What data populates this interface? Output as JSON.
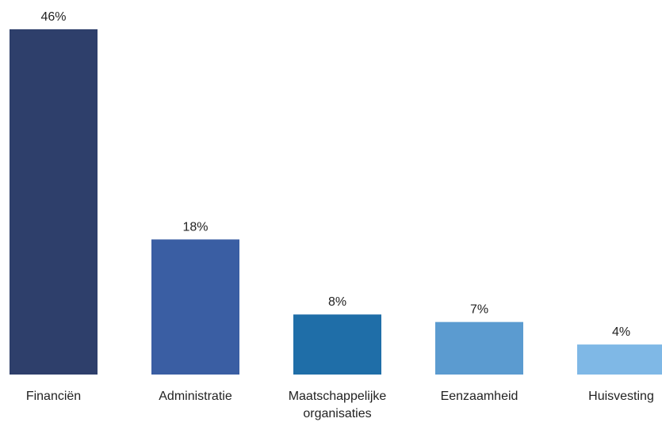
{
  "chart_data": {
    "type": "bar",
    "categories": [
      [
        "Financiën"
      ],
      [
        "Administratie"
      ],
      [
        "Maatschappelijke",
        "organisaties"
      ],
      [
        "Eenzaamheid"
      ],
      [
        "Huisvesting"
      ]
    ],
    "values": [
      46,
      18,
      8,
      7,
      4
    ],
    "value_labels": [
      "46%",
      "18%",
      "8%",
      "7%",
      "4%"
    ],
    "unit": "%",
    "title": "",
    "xlabel": "",
    "ylabel": "",
    "ylim": [
      0,
      46
    ],
    "grid": false,
    "legend": "none",
    "colors": [
      "#2e3f6b",
      "#3a5ea3",
      "#1f6ea8",
      "#5b9bd0",
      "#7fb8e6"
    ]
  }
}
